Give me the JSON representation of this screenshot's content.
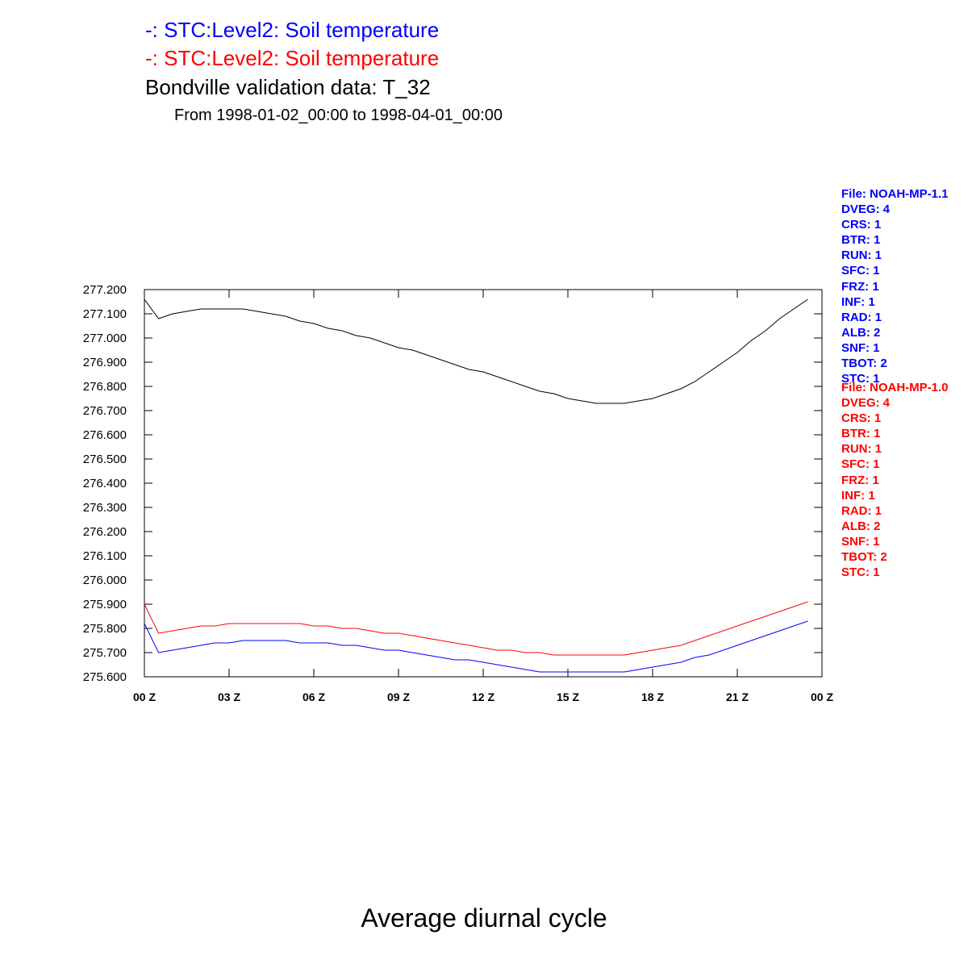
{
  "header": {
    "line1": "-: STC:Level2: Soil temperature",
    "line2": "-: STC:Level2: Soil temperature",
    "line3": "Bondville validation data: T_32",
    "line4": "From 1998-01-02_00:00 to 1998-04-01_00:00"
  },
  "footer": {
    "title": "Average diurnal cycle"
  },
  "legend_blue": [
    "File: NOAH-MP-1.1",
    "DVEG: 4",
    "CRS: 1",
    "BTR: 1",
    "RUN: 1",
    "SFC: 1",
    "FRZ: 1",
    "INF: 1",
    "RAD: 1",
    "ALB: 2",
    "SNF: 1",
    "TBOT: 2",
    "STC: 1"
  ],
  "legend_red": [
    "File: NOAH-MP-1.0",
    "DVEG: 4",
    "CRS: 1",
    "BTR: 1",
    "RUN: 1",
    "SFC: 1",
    "FRZ: 1",
    "INF: 1",
    "RAD: 1",
    "ALB: 2",
    "SNF: 1",
    "TBOT: 2",
    "STC: 1"
  ],
  "chart_data": {
    "type": "line",
    "title": "Average diurnal cycle",
    "ylim": [
      275.6,
      277.2
    ],
    "xlim": [
      0,
      24
    ],
    "grid": false,
    "yticks": [
      275.6,
      275.7,
      275.8,
      275.9,
      276.0,
      276.1,
      276.2,
      276.3,
      276.4,
      276.5,
      276.6,
      276.7,
      276.8,
      276.9,
      277.0,
      277.1,
      277.2
    ],
    "ytick_labels": [
      "275.600",
      "275.700",
      "275.800",
      "275.900",
      "276.000",
      "276.100",
      "276.200",
      "276.300",
      "276.400",
      "276.500",
      "276.600",
      "276.700",
      "276.800",
      "276.900",
      "277.000",
      "277.100",
      "277.200"
    ],
    "xticks": [
      0,
      3,
      6,
      9,
      12,
      15,
      18,
      21,
      24
    ],
    "xtick_labels": [
      "00 Z",
      "03 Z",
      "06 Z",
      "09 Z",
      "12 Z",
      "15 Z",
      "18 Z",
      "21 Z",
      "00 Z"
    ],
    "x": [
      0,
      0.5,
      1,
      1.5,
      2,
      2.5,
      3,
      3.5,
      4,
      4.5,
      5,
      5.5,
      6,
      6.5,
      7,
      7.5,
      8,
      8.5,
      9,
      9.5,
      10,
      10.5,
      11,
      11.5,
      12,
      12.5,
      13,
      13.5,
      14,
      14.5,
      15,
      15.5,
      16,
      16.5,
      17,
      17.5,
      18,
      18.5,
      19,
      19.5,
      20,
      20.5,
      21,
      21.5,
      22,
      22.5,
      23,
      23.5
    ],
    "series": [
      {
        "color": "#000000",
        "values": [
          277.16,
          277.08,
          277.1,
          277.11,
          277.12,
          277.12,
          277.12,
          277.12,
          277.11,
          277.1,
          277.09,
          277.07,
          277.06,
          277.04,
          277.03,
          277.01,
          277.0,
          276.98,
          276.96,
          276.95,
          276.93,
          276.91,
          276.89,
          276.87,
          276.86,
          276.84,
          276.82,
          276.8,
          276.78,
          276.77,
          276.75,
          276.74,
          276.73,
          276.73,
          276.73,
          276.74,
          276.75,
          276.77,
          276.79,
          276.82,
          276.86,
          276.9,
          276.94,
          276.99,
          277.03,
          277.08,
          277.12,
          277.16
        ]
      },
      {
        "color": "#ff0000",
        "values": [
          275.9,
          275.78,
          275.79,
          275.8,
          275.81,
          275.81,
          275.82,
          275.82,
          275.82,
          275.82,
          275.82,
          275.82,
          275.81,
          275.81,
          275.8,
          275.8,
          275.79,
          275.78,
          275.78,
          275.77,
          275.76,
          275.75,
          275.74,
          275.73,
          275.72,
          275.71,
          275.71,
          275.7,
          275.7,
          275.69,
          275.69,
          275.69,
          275.69,
          275.69,
          275.69,
          275.7,
          275.71,
          275.72,
          275.73,
          275.75,
          275.77,
          275.79,
          275.81,
          275.83,
          275.85,
          275.87,
          275.89,
          275.91
        ]
      },
      {
        "color": "#0000ff",
        "values": [
          275.82,
          275.7,
          275.71,
          275.72,
          275.73,
          275.74,
          275.74,
          275.75,
          275.75,
          275.75,
          275.75,
          275.74,
          275.74,
          275.74,
          275.73,
          275.73,
          275.72,
          275.71,
          275.71,
          275.7,
          275.69,
          275.68,
          275.67,
          275.67,
          275.66,
          275.65,
          275.64,
          275.63,
          275.62,
          275.62,
          275.62,
          275.62,
          275.62,
          275.62,
          275.62,
          275.63,
          275.64,
          275.65,
          275.66,
          275.68,
          275.69,
          275.71,
          275.73,
          275.75,
          275.77,
          275.79,
          275.81,
          275.83
        ]
      }
    ]
  }
}
